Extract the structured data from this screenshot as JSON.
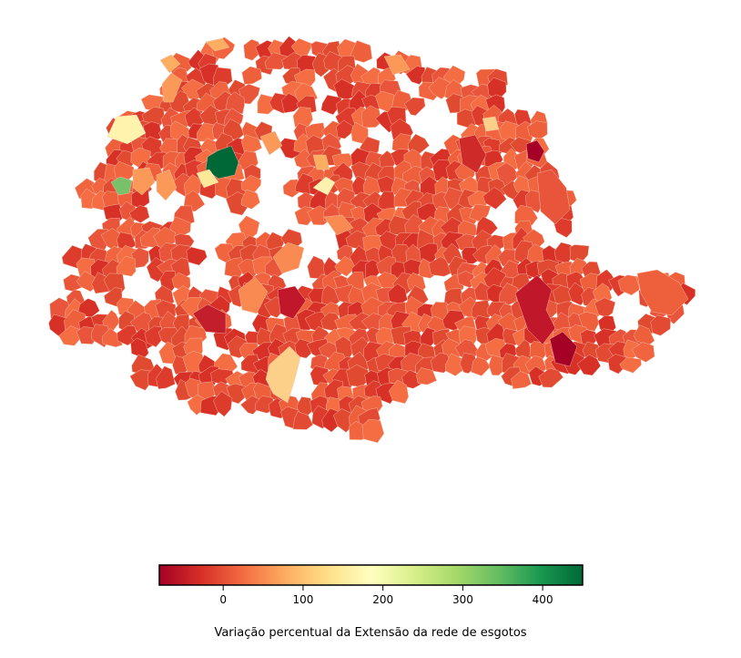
{
  "map": {
    "colormap": [
      "#a50026",
      "#d73027",
      "#f46d43",
      "#fdae61",
      "#fee08b",
      "#ffffbf",
      "#d9ef8b",
      "#a6d96a",
      "#66bd63",
      "#1a9850",
      "#006837"
    ],
    "background": "#ffffff",
    "region_stroke": "#f8c8b8"
  },
  "colorbar": {
    "min": -80,
    "max": 450,
    "ticks": [
      {
        "value": 0,
        "label": "0"
      },
      {
        "value": 100,
        "label": "100"
      },
      {
        "value": 200,
        "label": "200"
      },
      {
        "value": 300,
        "label": "300"
      },
      {
        "value": 400,
        "label": "400"
      }
    ],
    "label": "Variação percentual da Extensão da rede de esgotos"
  }
}
